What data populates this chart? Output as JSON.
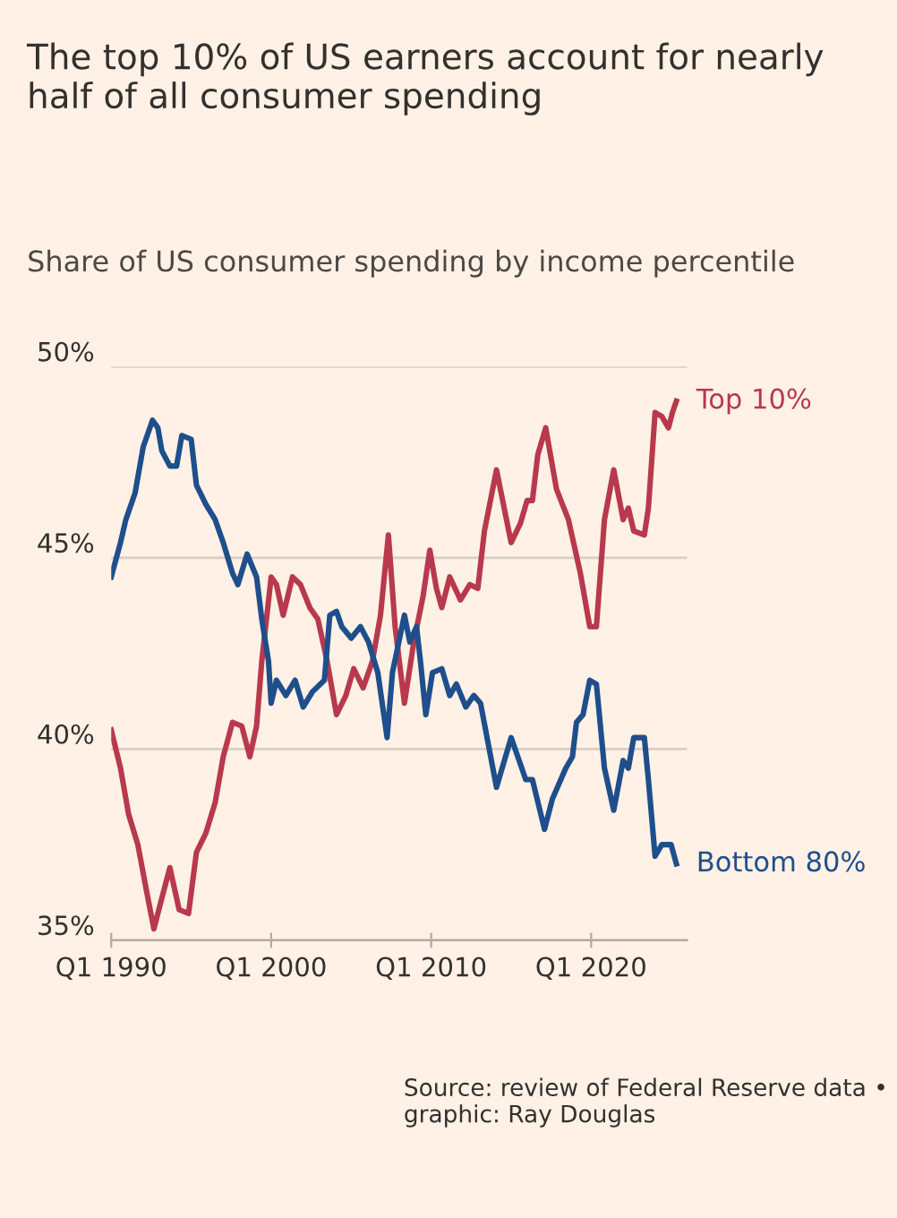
{
  "chart_data": {
    "type": "line",
    "title": "The top 10% of US earners account for nearly half of all consumer spending",
    "subtitle": "Share of US consumer spending by income percentile",
    "annotations": [
      "Source: review of Federal Reserve data • graphic: Ray Douglas"
    ],
    "xlim": [
      "1990-01",
      "2026-01"
    ],
    "ylim": [
      35,
      50
    ],
    "xticks": [
      {
        "value": "1990-01",
        "label": "Q1 1990"
      },
      {
        "value": "2000-01",
        "label": "Q1 2000"
      },
      {
        "value": "2010-01",
        "label": "Q1 2010"
      },
      {
        "value": "2020-01",
        "label": "Q1 2020"
      }
    ],
    "yticks": [
      {
        "value": 35,
        "label": "35%"
      },
      {
        "value": 40,
        "label": "40%"
      },
      {
        "value": 45,
        "label": "45%"
      },
      {
        "value": 50,
        "label": "50%"
      }
    ],
    "grid": "y",
    "legend": false,
    "marker": "none",
    "line_style": "solid",
    "series": [
      {
        "name": "Top 10%",
        "color": "#b8394d",
        "x": [
          "1990-01",
          "1990-08",
          "1991-02",
          "1991-09",
          "1992-04",
          "1992-09",
          "1993-03",
          "1993-09",
          "1994-04",
          "1994-11",
          "1995-05",
          "1995-12",
          "1996-07",
          "1997-01",
          "1997-08",
          "1998-03",
          "1998-09",
          "1999-02",
          "1999-06",
          "2000-01",
          "2000-05",
          "2000-10",
          "2001-05",
          "2001-11",
          "2002-06",
          "2002-12",
          "2003-07",
          "2004-02",
          "2004-09",
          "2005-03",
          "2005-10",
          "2006-05",
          "2006-11",
          "2007-05",
          "2007-10",
          "2008-05",
          "2008-12",
          "2009-07",
          "2009-12",
          "2010-05",
          "2010-09",
          "2011-03",
          "2011-11",
          "2012-06",
          "2012-12",
          "2013-05",
          "2014-02",
          "2015-01",
          "2015-08",
          "2016-01",
          "2016-05",
          "2016-09",
          "2017-03",
          "2017-11",
          "2018-08",
          "2019-05",
          "2019-12",
          "2020-05",
          "2020-11",
          "2021-06",
          "2022-01",
          "2022-05",
          "2022-09",
          "2023-05",
          "2023-08",
          "2024-01",
          "2024-06",
          "2024-11",
          "2025-02",
          "2025-05"
        ],
        "values": [
          40.5,
          39.5,
          38.3,
          37.5,
          36.2,
          35.3,
          36.1,
          36.9,
          35.8,
          35.7,
          37.3,
          37.8,
          38.6,
          39.8,
          40.7,
          40.6,
          39.8,
          40.6,
          42.3,
          44.5,
          44.3,
          43.5,
          44.5,
          44.3,
          43.7,
          43.4,
          42.3,
          40.9,
          41.4,
          42.1,
          41.6,
          42.3,
          43.5,
          45.6,
          43.2,
          41.2,
          42.8,
          44.0,
          45.2,
          44.2,
          43.7,
          44.5,
          43.9,
          44.3,
          44.2,
          45.7,
          47.3,
          45.4,
          45.9,
          46.5,
          46.5,
          47.7,
          48.4,
          46.8,
          46.0,
          44.6,
          43.2,
          43.2,
          46.0,
          47.3,
          46.0,
          46.3,
          45.7,
          45.6,
          46.3,
          48.8,
          48.7,
          48.4,
          48.8,
          49.1
        ]
      },
      {
        "name": "Bottom 80%",
        "color": "#1f4e8c",
        "x": [
          "1990-01",
          "1990-08",
          "1990-12",
          "1991-07",
          "1992-01",
          "1992-08",
          "1992-12",
          "1993-03",
          "1993-09",
          "1994-02",
          "1994-06",
          "1995-01",
          "1995-05",
          "1995-12",
          "1996-07",
          "1997-01",
          "1997-08",
          "1997-12",
          "1998-07",
          "1999-02",
          "1999-06",
          "1999-11",
          "2000-01",
          "2000-05",
          "2000-12",
          "2001-07",
          "2002-01",
          "2002-08",
          "2003-05",
          "2003-09",
          "2004-02",
          "2004-06",
          "2005-01",
          "2005-08",
          "2006-02",
          "2006-09",
          "2007-04",
          "2007-08",
          "2008-05",
          "2008-09",
          "2009-02",
          "2009-05",
          "2009-09",
          "2010-02",
          "2010-09",
          "2011-03",
          "2011-08",
          "2012-03",
          "2012-09",
          "2013-02",
          "2014-02",
          "2015-01",
          "2015-12",
          "2016-05",
          "2017-02",
          "2017-08",
          "2018-06",
          "2018-11",
          "2019-02",
          "2019-07",
          "2019-12",
          "2020-05",
          "2020-11",
          "2021-06",
          "2022-01",
          "2022-05",
          "2022-09",
          "2023-05",
          "2023-08",
          "2024-01",
          "2024-06",
          "2025-01",
          "2025-05"
        ],
        "values": [
          44.5,
          45.4,
          46.0,
          46.7,
          47.9,
          48.6,
          48.4,
          47.8,
          47.4,
          47.4,
          48.2,
          48.1,
          46.9,
          46.4,
          46.0,
          45.4,
          44.6,
          44.3,
          45.1,
          44.5,
          43.4,
          42.3,
          41.2,
          41.8,
          41.4,
          41.8,
          41.1,
          41.5,
          41.8,
          43.5,
          43.6,
          43.2,
          42.9,
          43.2,
          42.8,
          42.0,
          40.3,
          42.0,
          43.5,
          42.8,
          43.2,
          42.3,
          40.9,
          42.0,
          42.1,
          41.4,
          41.7,
          41.1,
          41.4,
          41.2,
          39.0,
          40.3,
          39.2,
          39.2,
          37.9,
          38.7,
          39.5,
          39.8,
          40.7,
          40.9,
          41.8,
          41.7,
          39.5,
          38.4,
          39.7,
          39.5,
          40.3,
          40.3,
          39.2,
          37.2,
          37.5,
          37.5,
          37.0
        ]
      }
    ]
  }
}
